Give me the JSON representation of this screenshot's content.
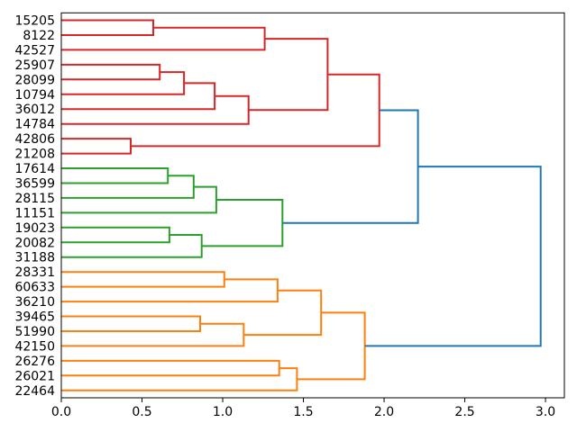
{
  "figure": {
    "background": "#ffffff",
    "title": ""
  },
  "chart_data": {
    "type": "dendrogram",
    "orientation": "horizontal-left-labels",
    "title": "",
    "xlabel": "",
    "ylabel": "",
    "grid": false,
    "legend": null,
    "leaves": [
      "15205",
      "8122",
      "42527",
      "25907",
      "28099",
      "10794",
      "36012",
      "14784",
      "42806",
      "21208",
      "17614",
      "36599",
      "28115",
      "11151",
      "19023",
      "20082",
      "31188",
      "28331",
      "60633",
      "36210",
      "39465",
      "51990",
      "42150",
      "26276",
      "26021",
      "22464"
    ],
    "links": [
      {
        "id": "A",
        "children": [
          "15205",
          "8122"
        ],
        "height": 0.57,
        "color": "red"
      },
      {
        "id": "B",
        "children": [
          "A",
          "42527"
        ],
        "height": 1.26,
        "color": "red"
      },
      {
        "id": "C",
        "children": [
          "25907",
          "28099"
        ],
        "height": 0.61,
        "color": "red"
      },
      {
        "id": "D",
        "children": [
          "C",
          "10794"
        ],
        "height": 0.76,
        "color": "red"
      },
      {
        "id": "E",
        "children": [
          "D",
          "36012"
        ],
        "height": 0.95,
        "color": "red"
      },
      {
        "id": "F",
        "children": [
          "E",
          "14784"
        ],
        "height": 1.16,
        "color": "red"
      },
      {
        "id": "G",
        "children": [
          "B",
          "F"
        ],
        "height": 1.65,
        "color": "red"
      },
      {
        "id": "H",
        "children": [
          "42806",
          "21208"
        ],
        "height": 0.43,
        "color": "red"
      },
      {
        "id": "I",
        "children": [
          "G",
          "H"
        ],
        "height": 1.97,
        "color": "red"
      },
      {
        "id": "L",
        "children": [
          "17614",
          "36599"
        ],
        "height": 0.66,
        "color": "green"
      },
      {
        "id": "M",
        "children": [
          "L",
          "28115"
        ],
        "height": 0.82,
        "color": "green"
      },
      {
        "id": "N",
        "children": [
          "M",
          "11151"
        ],
        "height": 0.96,
        "color": "green"
      },
      {
        "id": "O",
        "children": [
          "19023",
          "20082"
        ],
        "height": 0.67,
        "color": "green"
      },
      {
        "id": "P",
        "children": [
          "O",
          "31188"
        ],
        "height": 0.87,
        "color": "green"
      },
      {
        "id": "Q",
        "children": [
          "N",
          "P"
        ],
        "height": 1.37,
        "color": "green"
      },
      {
        "id": "R",
        "children": [
          "28331",
          "60633"
        ],
        "height": 1.01,
        "color": "orange"
      },
      {
        "id": "S",
        "children": [
          "R",
          "36210"
        ],
        "height": 1.34,
        "color": "orange"
      },
      {
        "id": "T",
        "children": [
          "39465",
          "51990"
        ],
        "height": 0.86,
        "color": "orange"
      },
      {
        "id": "U",
        "children": [
          "T",
          "42150"
        ],
        "height": 1.13,
        "color": "orange"
      },
      {
        "id": "V",
        "children": [
          "S",
          "U"
        ],
        "height": 1.61,
        "color": "orange"
      },
      {
        "id": "W",
        "children": [
          "26276",
          "26021"
        ],
        "height": 1.35,
        "color": "orange"
      },
      {
        "id": "X",
        "children": [
          "W",
          "22464"
        ],
        "height": 1.46,
        "color": "orange"
      },
      {
        "id": "Y",
        "children": [
          "V",
          "X"
        ],
        "height": 1.88,
        "color": "orange"
      },
      {
        "id": "J",
        "children": [
          "I",
          "Q"
        ],
        "height": 2.21,
        "color": "blue"
      },
      {
        "id": "K",
        "children": [
          "J",
          "Y"
        ],
        "height": 2.97,
        "color": "blue"
      }
    ],
    "colors": {
      "red": "#d62728",
      "green": "#2ca02c",
      "orange": "#ff7f0e",
      "blue": "#1f77b4",
      "axis": "#000000"
    },
    "x_axis": {
      "min": 0,
      "max": 3.117,
      "tick_values": [
        0,
        0.5,
        1,
        1.5,
        2,
        2.5,
        3
      ],
      "tick_labels": [
        "0.0",
        "0.5",
        "1.0",
        "1.5",
        "2.0",
        "2.5",
        "3.0"
      ]
    }
  }
}
